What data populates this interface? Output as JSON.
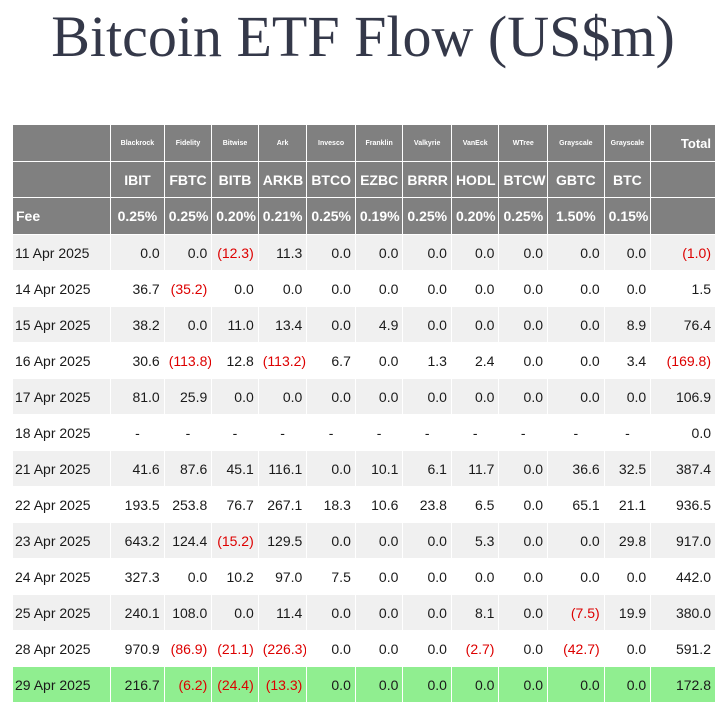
{
  "title": "Bitcoin ETF Flow (US$m)",
  "colors": {
    "header_bg": "#808080",
    "negative": "#dd0000",
    "highlight_row": "#90ee90",
    "stripe": "#f0f0f0"
  },
  "chart_data": {
    "type": "table",
    "title": "Bitcoin ETF Flow (US$m)",
    "issuers": [
      "Blackrock",
      "Fidelity",
      "Bitwise",
      "Ark",
      "Invesco",
      "Franklin",
      "Valkyrie",
      "VanEck",
      "WTree",
      "Grayscale",
      "Grayscale"
    ],
    "tickers": [
      "IBIT",
      "FBTC",
      "BITB",
      "ARKB",
      "BTCO",
      "EZBC",
      "BRRR",
      "HODL",
      "BTCW",
      "GBTC",
      "BTC"
    ],
    "total_label": "Total",
    "fee_label": "Fee",
    "fees": [
      "0.25%",
      "0.25%",
      "0.20%",
      "0.21%",
      "0.25%",
      "0.19%",
      "0.25%",
      "0.20%",
      "0.25%",
      "1.50%",
      "0.15%"
    ],
    "rows": [
      {
        "date": "11 Apr 2025",
        "values": [
          "0.0",
          "0.0",
          "(12.3)",
          "11.3",
          "0.0",
          "0.0",
          "0.0",
          "0.0",
          "0.0",
          "0.0",
          "0.0"
        ],
        "total": "(1.0)"
      },
      {
        "date": "14 Apr 2025",
        "values": [
          "36.7",
          "(35.2)",
          "0.0",
          "0.0",
          "0.0",
          "0.0",
          "0.0",
          "0.0",
          "0.0",
          "0.0",
          "0.0"
        ],
        "total": "1.5"
      },
      {
        "date": "15 Apr 2025",
        "values": [
          "38.2",
          "0.0",
          "11.0",
          "13.4",
          "0.0",
          "4.9",
          "0.0",
          "0.0",
          "0.0",
          "0.0",
          "8.9"
        ],
        "total": "76.4"
      },
      {
        "date": "16 Apr 2025",
        "values": [
          "30.6",
          "(113.8)",
          "12.8",
          "(113.2)",
          "6.7",
          "0.0",
          "1.3",
          "2.4",
          "0.0",
          "0.0",
          "3.4"
        ],
        "total": "(169.8)"
      },
      {
        "date": "17 Apr 2025",
        "values": [
          "81.0",
          "25.9",
          "0.0",
          "0.0",
          "0.0",
          "0.0",
          "0.0",
          "0.0",
          "0.0",
          "0.0",
          "0.0"
        ],
        "total": "106.9"
      },
      {
        "date": "18 Apr 2025",
        "values": [
          "-",
          "-",
          "-",
          "-",
          "-",
          "-",
          "-",
          "-",
          "-",
          "-",
          "-"
        ],
        "total": "0.0"
      },
      {
        "date": "21 Apr 2025",
        "values": [
          "41.6",
          "87.6",
          "45.1",
          "116.1",
          "0.0",
          "10.1",
          "6.1",
          "11.7",
          "0.0",
          "36.6",
          "32.5"
        ],
        "total": "387.4"
      },
      {
        "date": "22 Apr 2025",
        "values": [
          "193.5",
          "253.8",
          "76.7",
          "267.1",
          "18.3",
          "10.6",
          "23.8",
          "6.5",
          "0.0",
          "65.1",
          "21.1"
        ],
        "total": "936.5"
      },
      {
        "date": "23 Apr 2025",
        "values": [
          "643.2",
          "124.4",
          "(15.2)",
          "129.5",
          "0.0",
          "0.0",
          "0.0",
          "5.3",
          "0.0",
          "0.0",
          "29.8"
        ],
        "total": "917.0"
      },
      {
        "date": "24 Apr 2025",
        "values": [
          "327.3",
          "0.0",
          "10.2",
          "97.0",
          "7.5",
          "0.0",
          "0.0",
          "0.0",
          "0.0",
          "0.0",
          "0.0"
        ],
        "total": "442.0"
      },
      {
        "date": "25 Apr 2025",
        "values": [
          "240.1",
          "108.0",
          "0.0",
          "11.4",
          "0.0",
          "0.0",
          "0.0",
          "8.1",
          "0.0",
          "(7.5)",
          "19.9"
        ],
        "total": "380.0"
      },
      {
        "date": "28 Apr 2025",
        "values": [
          "970.9",
          "(86.9)",
          "(21.1)",
          "(226.3)",
          "0.0",
          "0.0",
          "0.0",
          "(2.7)",
          "0.0",
          "(42.7)",
          "0.0"
        ],
        "total": "591.2"
      },
      {
        "date": "29 Apr 2025",
        "values": [
          "216.7",
          "(6.2)",
          "(24.4)",
          "(13.3)",
          "0.0",
          "0.0",
          "0.0",
          "0.0",
          "0.0",
          "0.0",
          "0.0"
        ],
        "total": "172.8",
        "highlight": true
      }
    ]
  }
}
